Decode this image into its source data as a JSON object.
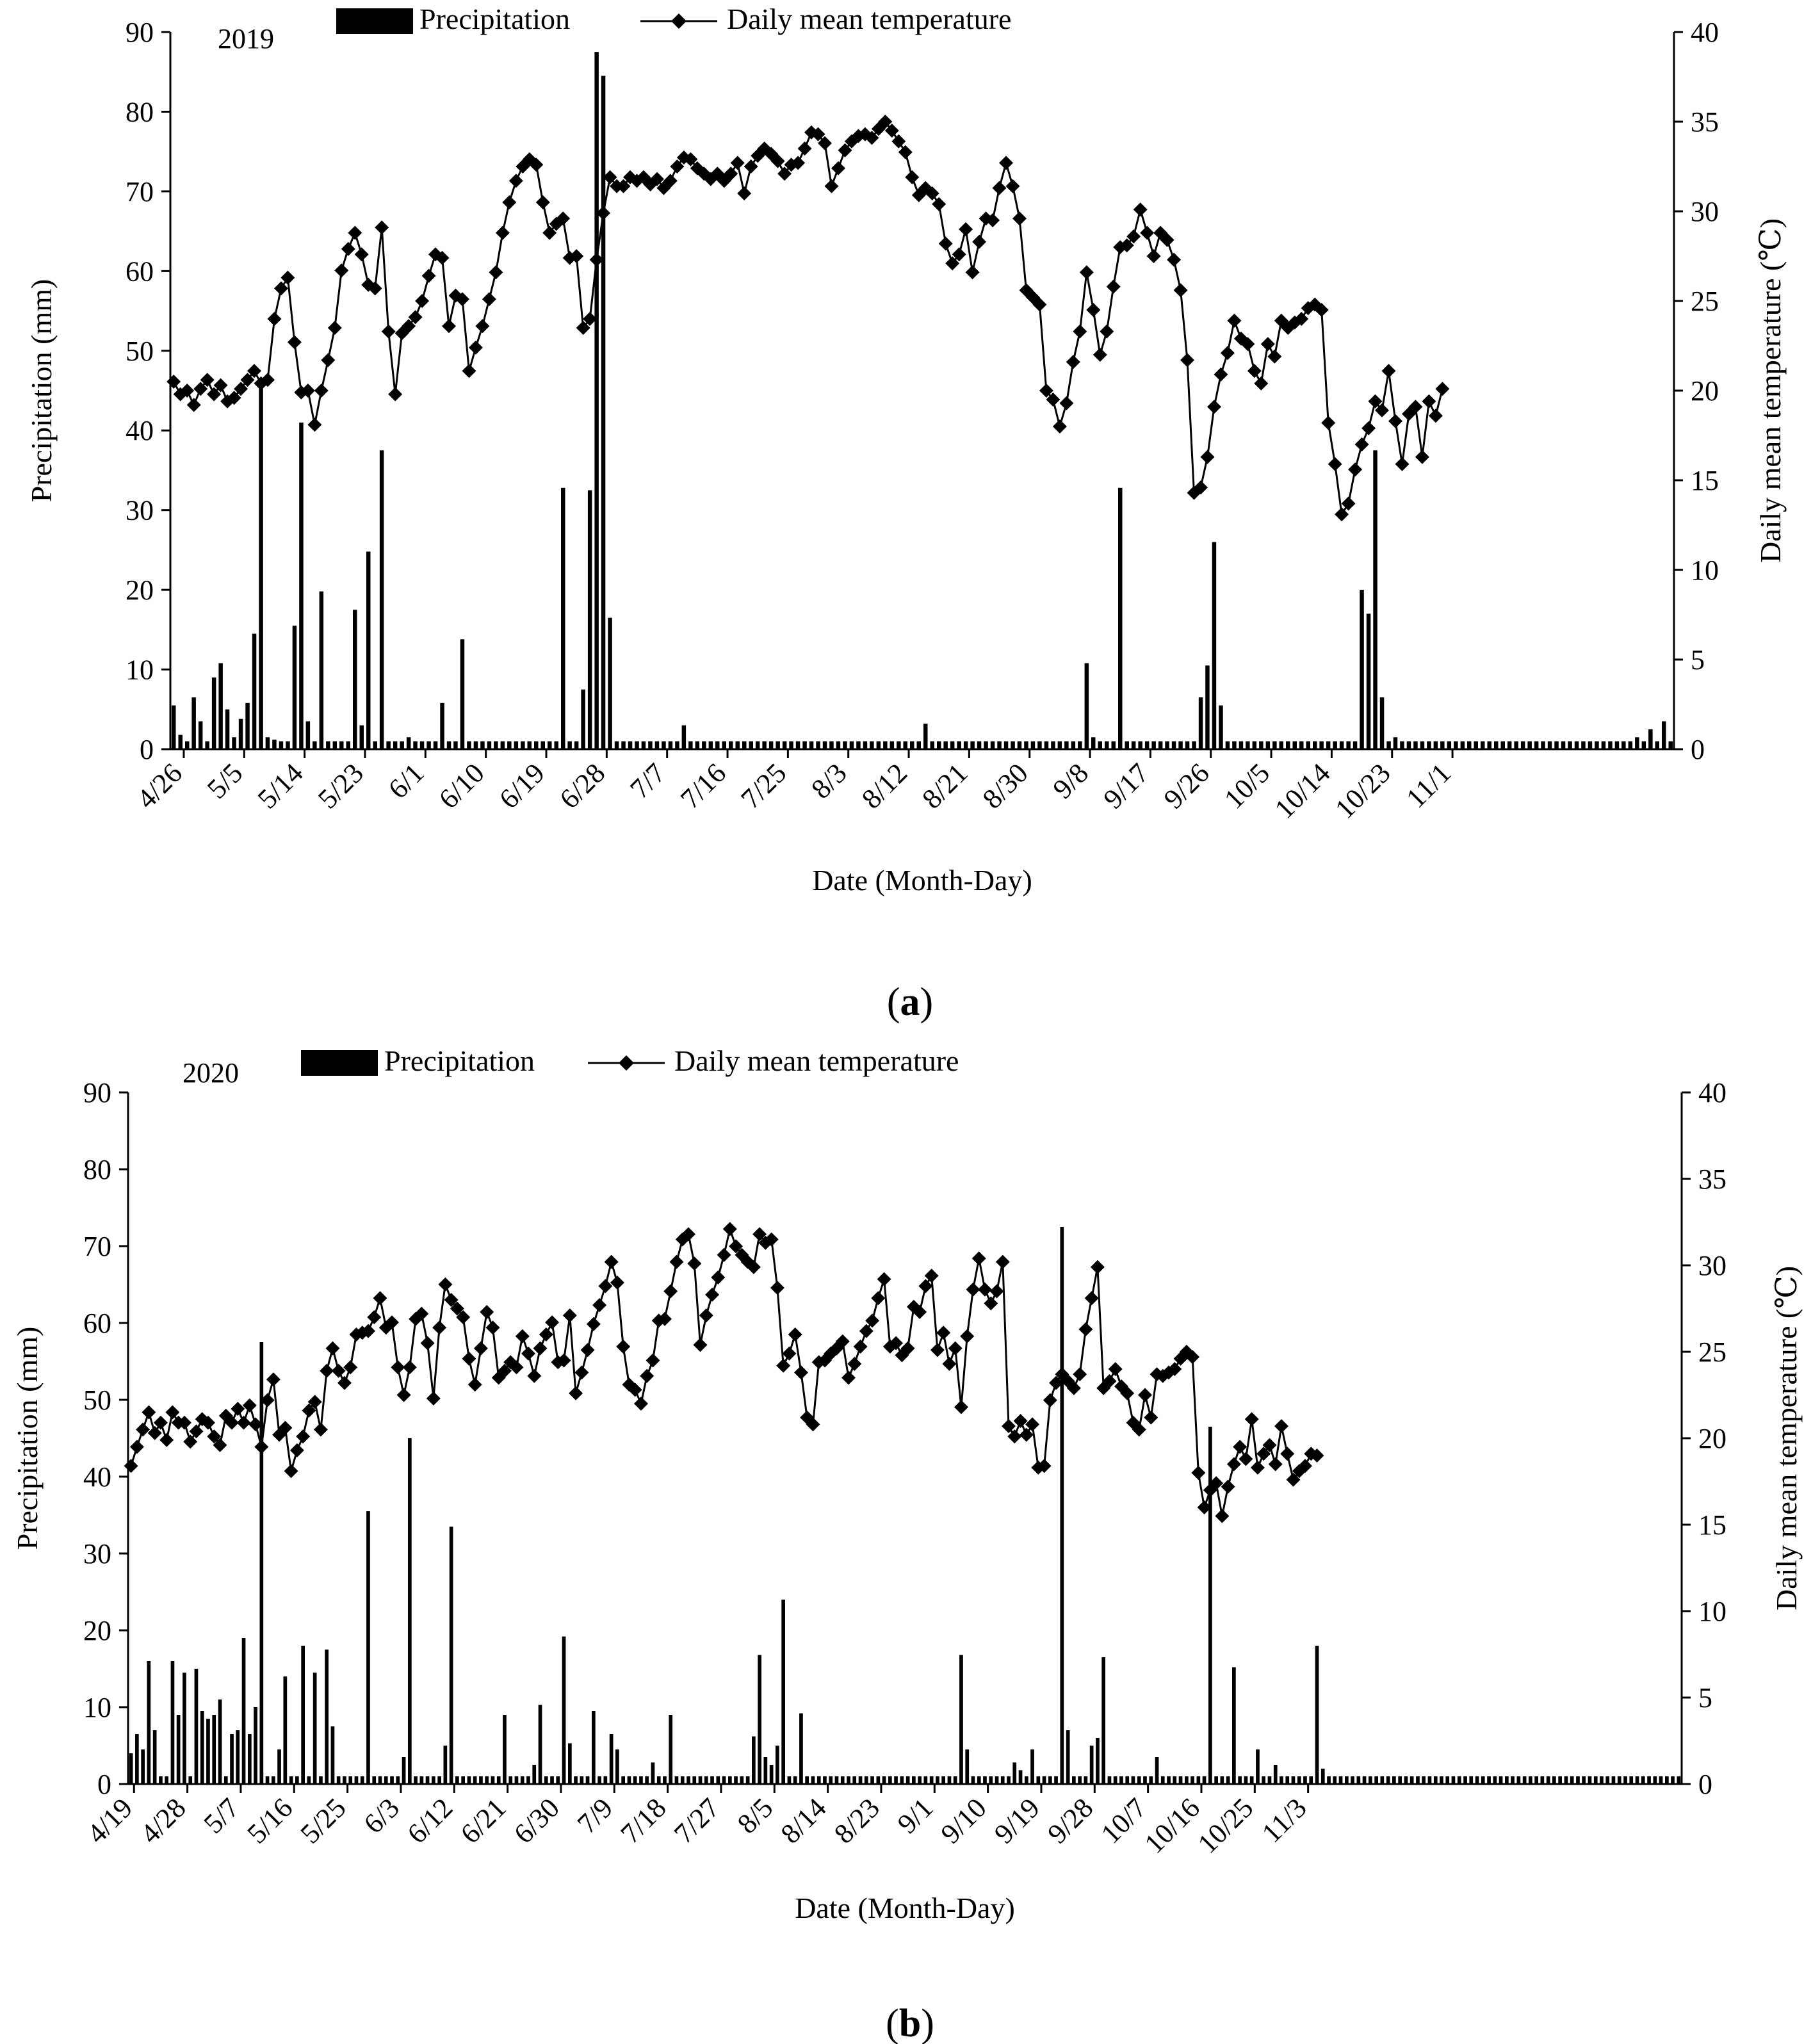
{
  "chart_data": [
    {
      "type": "bar+line",
      "panel_label": "(a)",
      "year_label": "2019",
      "xlabel": "Date (Month-Day)",
      "ylabel_left": "Precipitation (mm)",
      "ylabel_right": "Daily mean temperature (℃)",
      "ylim_left": [
        0,
        90
      ],
      "ylim_right": [
        0,
        40
      ],
      "yticks_left": [
        "0",
        "10",
        "20",
        "30",
        "40",
        "50",
        "60",
        "70",
        "80",
        "90"
      ],
      "yticks_right": [
        "0",
        "5",
        "10",
        "15",
        "20",
        "25",
        "30",
        "35",
        "40"
      ],
      "xticks": [
        "4/26",
        "5/5",
        "5/14",
        "5/23",
        "6/1",
        "6/10",
        "6/19",
        "6/28",
        "7/7",
        "7/16",
        "7/25",
        "8/3",
        "8/12",
        "8/21",
        "8/30",
        "9/8",
        "9/17",
        "9/26",
        "10/5",
        "10/14",
        "10/23",
        "11/1"
      ],
      "legend": [
        "Precipitation",
        "Daily mean temperature"
      ],
      "legend_position": "top",
      "series": [
        {
          "name": "Precipitation",
          "kind": "bar",
          "axis": "left",
          "x_start": "4/26",
          "values": [
            5.5,
            1.8,
            1,
            6.5,
            3.5,
            1,
            9,
            10.8,
            5,
            1.5,
            3.8,
            5.8,
            14.5,
            46,
            1.5,
            1.2,
            1,
            1,
            15.5,
            41,
            3.5,
            1,
            19.8,
            1,
            1,
            1,
            1,
            17.5,
            3,
            24.8,
            1,
            37.5,
            1,
            1,
            1,
            1.5,
            1,
            1,
            1,
            1,
            5.8,
            1,
            1,
            13.8,
            1,
            1,
            1,
            1,
            1,
            1,
            1,
            1,
            1,
            1,
            1,
            1,
            1,
            1,
            32.8,
            1,
            1,
            7.5,
            32.5,
            87.5,
            84.5,
            16.5,
            1,
            1,
            1,
            1,
            1,
            1,
            1,
            1,
            1,
            1,
            3,
            1,
            1,
            1,
            1,
            1,
            1,
            1,
            1,
            1,
            1,
            1,
            1,
            1,
            1,
            1,
            1,
            1,
            1,
            1,
            1,
            1,
            1,
            1,
            1,
            1,
            1,
            1,
            1,
            1,
            1,
            1,
            1,
            1,
            1,
            1,
            3.2,
            1,
            1,
            1,
            1,
            1,
            1,
            1,
            1,
            1,
            1,
            1,
            1,
            1,
            1,
            1,
            1,
            1,
            1,
            1,
            1,
            1,
            1,
            1,
            10.8,
            1.5,
            1,
            1,
            1,
            32.8,
            1,
            1,
            1,
            1,
            1,
            1,
            1,
            1,
            1,
            1,
            1,
            6.5,
            10.5,
            26,
            5.5,
            1,
            1,
            1,
            1,
            1,
            1,
            1,
            1,
            1,
            1,
            1,
            1,
            1,
            1,
            1,
            1,
            1,
            1,
            1,
            1,
            20,
            17,
            37.5,
            6.5,
            1,
            1.5,
            1,
            1,
            1,
            1,
            1,
            1,
            1,
            1,
            1,
            1,
            1,
            1,
            1,
            1,
            1,
            1,
            1,
            1,
            1,
            1,
            1,
            1,
            1,
            1,
            1,
            1,
            1,
            1,
            1,
            1,
            1,
            1,
            1,
            1,
            1,
            1.5,
            1,
            2.5,
            1,
            3.5,
            1
          ]
        },
        {
          "name": "Daily mean temperature",
          "kind": "line",
          "axis": "right",
          "x_start": "4/26",
          "values": [
            20.5,
            19.8,
            20,
            19.2,
            20.1,
            20.6,
            19.8,
            20.3,
            19.4,
            19.6,
            20.1,
            20.6,
            21.1,
            20.4,
            20.6,
            24,
            25.7,
            26.3,
            22.7,
            19.9,
            20,
            18.1,
            20,
            21.7,
            23.5,
            26.7,
            27.9,
            28.8,
            27.6,
            25.9,
            25.7,
            29.1,
            23.3,
            19.8,
            23.2,
            23.6,
            24.1,
            25,
            26.4,
            27.6,
            27.4,
            23.6,
            25.3,
            25.1,
            21.1,
            22.4,
            23.6,
            25.1,
            26.6,
            28.8,
            30.5,
            31.7,
            32.5,
            32.9,
            32.6,
            30.5,
            28.8,
            29.3,
            29.6,
            27.4,
            27.5,
            23.5,
            24,
            27.3,
            29.9,
            31.9,
            31.4,
            31.4,
            31.9,
            31.7,
            31.9,
            31.5,
            31.8,
            31.3,
            31.7,
            32.5,
            33,
            32.9,
            32.4,
            32.1,
            31.8,
            32.1,
            31.7,
            32.1,
            32.7,
            31,
            32.5,
            33.1,
            33.5,
            33.2,
            32.8,
            32.1,
            32.6,
            32.7,
            33.5,
            34.4,
            34.3,
            33.8,
            31.4,
            32.4,
            33.4,
            33.9,
            34.2,
            34.3,
            34.1,
            34.6,
            35,
            34.5,
            33.9,
            33.3,
            31.9,
            30.9,
            31.3,
            31,
            30.4,
            28.2,
            27.1,
            27.6,
            29,
            26.6,
            28.3,
            29.6,
            29.5,
            31.3,
            32.7,
            31.4,
            29.6,
            25.6,
            25.2,
            24.8,
            20,
            19.5,
            18,
            19.3,
            21.6,
            23.3,
            26.6,
            24.5,
            22,
            23.3,
            25.8,
            28,
            28.1,
            28.6,
            30.1,
            28.8,
            27.5,
            28.8,
            28.4,
            27.3,
            25.6,
            21.7,
            14.3,
            14.6,
            16.3,
            19.1,
            20.9,
            22.1,
            23.9,
            22.9,
            22.6,
            21.1,
            20.4,
            22.6,
            21.9,
            23.9,
            23.5,
            23.8,
            24,
            24.6,
            24.8,
            24.5,
            18.2,
            15.9,
            13.1,
            13.7,
            15.6,
            17,
            17.9,
            19.4,
            18.9,
            21.1,
            18.3,
            15.9,
            18.7,
            19.1,
            16.3,
            19.4,
            18.6,
            20.1
          ]
        }
      ]
    },
    {
      "type": "bar+line",
      "panel_label": "(b)",
      "year_label": "2020",
      "xlabel": "Date (Month-Day)",
      "ylabel_left": "Precipitation (mm)",
      "ylabel_right": "Daily mean temperature (℃)",
      "ylim_left": [
        0,
        90
      ],
      "ylim_right": [
        0,
        40
      ],
      "yticks_left": [
        "0",
        "10",
        "20",
        "30",
        "40",
        "50",
        "60",
        "70",
        "80",
        "90"
      ],
      "yticks_right": [
        "0",
        "5",
        "10",
        "15",
        "20",
        "25",
        "30",
        "35",
        "40"
      ],
      "xticks": [
        "4/19",
        "4/28",
        "5/7",
        "5/16",
        "5/25",
        "6/3",
        "6/12",
        "6/21",
        "6/30",
        "7/9",
        "7/18",
        "7/27",
        "8/5",
        "8/14",
        "8/23",
        "9/1",
        "9/10",
        "9/19",
        "9/28",
        "10/7",
        "10/16",
        "10/25",
        "11/3"
      ],
      "legend": [
        "Precipitation",
        "Daily mean temperature"
      ],
      "legend_position": "top",
      "series": [
        {
          "name": "Precipitation",
          "kind": "bar",
          "axis": "left",
          "x_start": "4/19",
          "values": [
            4,
            6.5,
            4.5,
            16,
            7,
            1,
            1,
            16,
            9,
            14.5,
            1,
            15,
            9.5,
            8.5,
            9,
            11,
            1,
            6.5,
            7,
            19,
            6.5,
            10,
            57.5,
            1,
            1,
            4.5,
            14,
            1,
            1,
            18,
            1,
            14.5,
            1,
            17.5,
            7.5,
            1,
            1,
            1,
            1,
            1,
            35.5,
            1,
            1,
            1,
            1,
            1,
            3.5,
            45,
            1,
            1,
            1,
            1,
            1,
            5,
            33.5,
            1,
            1,
            1,
            1,
            1,
            1,
            1,
            1,
            9,
            1,
            1,
            1,
            1,
            2.5,
            10.3,
            1,
            1,
            1,
            19.2,
            5.3,
            1,
            1,
            1,
            9.5,
            1,
            1,
            6.5,
            4.5,
            1,
            1,
            1,
            1,
            1,
            2.8,
            1,
            1,
            9,
            1,
            1,
            1,
            1,
            1,
            1,
            1,
            1,
            1,
            1,
            1,
            1,
            1,
            6.2,
            16.8,
            3.5,
            2.5,
            5,
            24,
            1,
            1,
            9.2,
            1,
            1,
            1,
            1,
            1,
            1,
            1,
            1,
            1,
            1,
            1,
            1,
            1,
            1,
            1,
            1,
            1,
            1,
            1,
            1,
            1,
            1,
            1,
            1,
            1,
            1,
            16.8,
            4.5,
            1,
            1,
            1,
            1,
            1,
            1,
            1,
            2.8,
            1.8,
            1,
            4.5,
            1,
            1,
            1,
            1,
            72.5,
            7,
            1,
            1,
            1,
            5,
            6,
            16.5,
            1,
            1,
            1,
            1,
            1,
            1,
            1,
            1,
            3.5,
            1,
            1,
            1,
            1,
            1,
            1,
            1,
            1,
            46.5,
            1,
            1,
            1,
            15.2,
            1,
            1,
            1,
            4.5,
            1,
            1,
            2.5,
            1,
            1,
            1,
            1,
            1,
            1,
            18,
            2,
            1,
            1,
            1,
            1,
            1,
            1,
            1,
            1,
            1,
            1,
            1,
            1,
            1,
            1,
            1,
            1,
            1,
            1,
            1,
            1,
            1,
            1,
            1,
            1,
            1,
            1,
            1,
            1,
            1,
            1,
            1,
            1,
            1,
            1,
            1,
            1,
            1,
            1,
            1,
            1,
            1,
            1,
            1,
            1,
            1,
            1,
            1,
            1,
            1,
            1,
            1,
            1,
            1,
            1,
            1,
            1,
            1,
            1,
            1,
            1
          ]
        },
        {
          "name": "Daily mean temperature",
          "kind": "line",
          "axis": "right",
          "x_start": "4/19",
          "values": [
            18.4,
            19.5,
            20.5,
            21.5,
            20.3,
            20.9,
            19.9,
            21.5,
            20.9,
            20.9,
            19.8,
            20.4,
            21.1,
            20.9,
            20.1,
            19.6,
            21.3,
            20.9,
            21.7,
            20.9,
            21.9,
            20.8,
            19.5,
            22.2,
            23.4,
            20.2,
            20.6,
            18.1,
            19.3,
            20.1,
            21.6,
            22.1,
            20.5,
            23.9,
            25.2,
            23.9,
            23.2,
            24.1,
            26,
            26.1,
            26.2,
            27,
            28.1,
            26.4,
            26.7,
            24.1,
            22.5,
            24.1,
            26.9,
            27.2,
            25.5,
            22.3,
            26.4,
            28.9,
            28,
            27.5,
            27,
            24.6,
            23.1,
            25.2,
            27.3,
            26.4,
            23.5,
            23.9,
            24.4,
            24.1,
            25.9,
            24.9,
            23.6,
            25.2,
            26,
            26.7,
            24.4,
            24.5,
            27.1,
            22.6,
            23.8,
            25.1,
            26.6,
            27.7,
            28.8,
            30.2,
            29,
            25.3,
            23.1,
            22.8,
            22,
            23.6,
            24.5,
            26.8,
            26.9,
            28.5,
            30.2,
            31.5,
            31.8,
            30.1,
            25.4,
            27.1,
            28.3,
            29.3,
            30.6,
            32.1,
            31.1,
            30.6,
            30.2,
            29.9,
            31.8,
            31.3,
            31.5,
            28.7,
            24.2,
            24.9,
            26,
            23.8,
            21.2,
            20.8,
            24.4,
            24.5,
            24.9,
            25.2,
            25.6,
            23.5,
            24.3,
            25.3,
            26.2,
            26.8,
            28.1,
            29.2,
            25.3,
            25.5,
            24.8,
            25.2,
            27.6,
            27.3,
            28.8,
            29.4,
            25.1,
            26.1,
            24.3,
            25.2,
            21.8,
            25.9,
            28.6,
            30.4,
            28.6,
            27.8,
            28.5,
            30.2,
            20.7,
            20.1,
            21,
            20.2,
            20.8,
            18.3,
            18.4,
            22.2,
            23.2,
            23.7,
            23.3,
            22.9,
            23.7,
            26.3,
            28.1,
            29.9,
            22.9,
            23.3,
            24,
            23,
            22.6,
            20.9,
            20.5,
            22.5,
            21.2,
            23.7,
            23.6,
            23.8,
            24,
            24.6,
            25,
            24.7,
            18,
            16,
            17,
            17.4,
            15.5,
            17.2,
            18.5,
            19.5,
            18.8,
            21.1,
            18.3,
            19.1,
            19.6,
            18.5,
            20.7,
            19.1,
            17.6,
            18.1,
            18.4,
            19.1,
            19
          ]
        }
      ]
    }
  ]
}
